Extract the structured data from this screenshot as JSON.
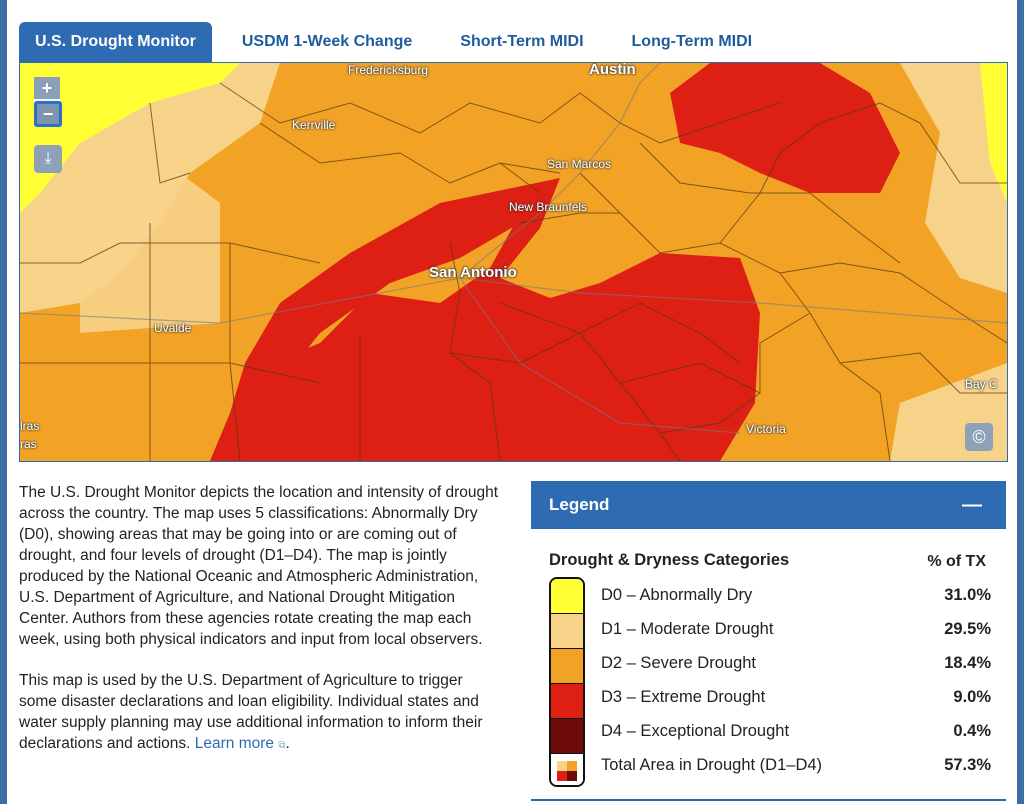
{
  "tabs": [
    {
      "label": "U.S. Drought Monitor"
    },
    {
      "label": "USDM 1-Week Change"
    },
    {
      "label": "Short-Term MIDI"
    },
    {
      "label": "Long-Term MIDI"
    }
  ],
  "map": {
    "zoom_in": "+",
    "zoom_out": "−",
    "places": [
      "Fredericksburg",
      "Austin",
      "Kerrville",
      "San Marcos",
      "New Braunfels",
      "San Antonio",
      "Uvalde",
      "Victoria",
      "Bay C",
      "lras",
      "ras"
    ],
    "colors": {
      "d0": "#ffff00",
      "d1": "#fcd37f",
      "d2": "#ffaa00",
      "d3": "#e60000",
      "d4": "#730000"
    }
  },
  "description": {
    "p1": "The U.S. Drought Monitor depicts the location and intensity of drought across the country. The map uses 5 classifications: Abnormally Dry (D0), showing areas that may be going into or are coming out of drought, and four levels of drought (D1–D4). The map is jointly produced by the National Oceanic and Atmospheric Administration,  U.S. Department of Agriculture, and National Drought Mitigation Center. Authors from these agencies rotate creating the map each week, using both physical indicators and  input from local observers.",
    "p2": "This map is used by the U.S. Department of Agriculture to trigger some disaster declarations and loan eligibility. Individual states and water supply planning may use additional information to inform their declarations and actions.",
    "link": "Learn more",
    "after_link": "."
  },
  "legend": {
    "title": "Legend",
    "collapse": "—",
    "categories_title": "Drought & Dryness Categories",
    "pct_title": "% of TX",
    "rows": [
      {
        "label": "D0 – Abnormally Dry",
        "value": "31.0%",
        "color": "#ffff33"
      },
      {
        "label": "D1 – Moderate Drought",
        "value": "29.5%",
        "color": "#f7d38a"
      },
      {
        "label": "D2 – Severe Drought",
        "value": "18.4%",
        "color": "#f2a326"
      },
      {
        "label": "D3 – Extreme Drought",
        "value": "9.0%",
        "color": "#dd1f14"
      },
      {
        "label": "D4 – Exceptional Drought",
        "value": "0.4%",
        "color": "#6e0a08"
      },
      {
        "label": "Total Area in Drought (D1–D4)",
        "value": "57.3%",
        "color": ""
      }
    ]
  }
}
